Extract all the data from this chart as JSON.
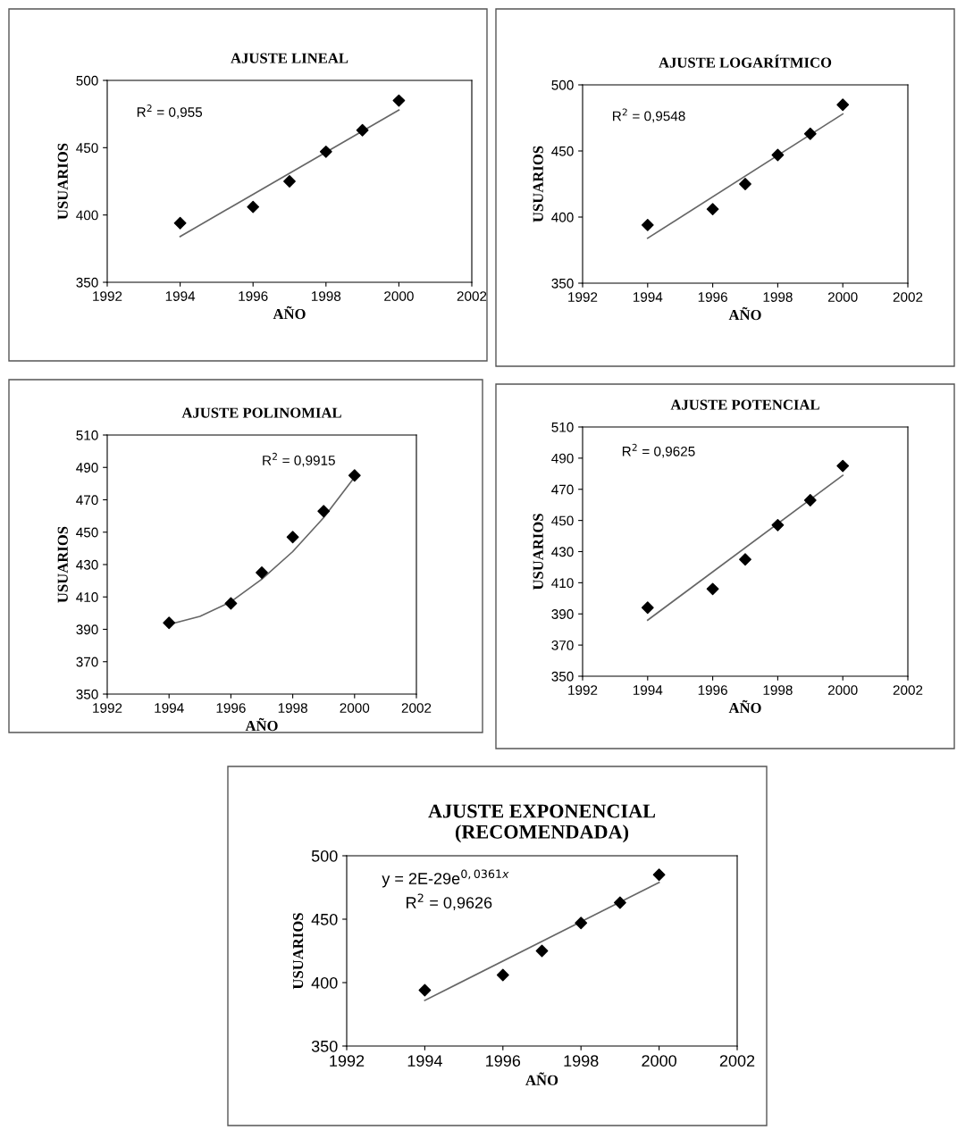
{
  "chart_data": [
    {
      "type": "scatter",
      "title": "AJUSTE LINEAL",
      "xlabel": "AÑO",
      "ylabel": "USUARIOS",
      "xlim": [
        1992,
        2002
      ],
      "xticks": [
        1992,
        1994,
        1996,
        1998,
        2000,
        2002
      ],
      "ylim": [
        350,
        500
      ],
      "yticks": [
        350,
        400,
        450,
        500
      ],
      "grid": false,
      "annotations": [
        "R$^{2}$ = 0,955"
      ],
      "series": [
        {
          "marker": "diamond",
          "color": "#000000",
          "x": [
            1994,
            1996,
            1997,
            1998,
            1999,
            2000
          ],
          "values": [
            394,
            406,
            425,
            447,
            463,
            485
          ]
        },
        {
          "type": "line",
          "line_style": "solid",
          "color": "#666666",
          "x": [
            1994,
            2000
          ],
          "values": [
            384,
            478
          ]
        }
      ]
    },
    {
      "type": "scatter",
      "title": "AJUSTE LOGARÍTMICO",
      "xlabel": "AÑO",
      "ylabel": "USUARIOS",
      "xlim": [
        1992,
        2002
      ],
      "xticks": [
        1992,
        1994,
        1996,
        1998,
        2000,
        2002
      ],
      "ylim": [
        350,
        500
      ],
      "yticks": [
        350,
        400,
        450,
        500
      ],
      "grid": false,
      "annotations": [
        "R$^{2}$ = 0,9548"
      ],
      "series": [
        {
          "marker": "diamond",
          "color": "#000000",
          "x": [
            1994,
            1996,
            1997,
            1998,
            1999,
            2000
          ],
          "values": [
            394,
            406,
            425,
            447,
            463,
            485
          ]
        },
        {
          "type": "line",
          "line_style": "solid",
          "color": "#666666",
          "x": [
            1994,
            2000
          ],
          "values": [
            384,
            478
          ]
        }
      ]
    },
    {
      "type": "scatter",
      "title": "AJUSTE POLINOMIAL",
      "xlabel": "AÑO",
      "ylabel": "USUARIOS",
      "xlim": [
        1992,
        2002
      ],
      "xticks": [
        1992,
        1994,
        1996,
        1998,
        2000,
        2002
      ],
      "ylim": [
        350,
        510
      ],
      "yticks": [
        350,
        370,
        390,
        410,
        430,
        450,
        470,
        490,
        510
      ],
      "grid": false,
      "annotations": [
        "R$^{2}$ = 0,9915"
      ],
      "series": [
        {
          "marker": "diamond",
          "color": "#000000",
          "x": [
            1994,
            1996,
            1997,
            1998,
            1999,
            2000
          ],
          "values": [
            394,
            406,
            425,
            447,
            463,
            485
          ]
        },
        {
          "type": "line",
          "line_style": "solid",
          "color": "#666666",
          "x": [
            1994,
            1995,
            1996,
            1997,
            1998,
            1999,
            2000
          ],
          "values": [
            393,
            398,
            407,
            421,
            438,
            459,
            484
          ]
        }
      ]
    },
    {
      "type": "scatter",
      "title": "AJUSTE POTENCIAL",
      "xlabel": "AÑO",
      "ylabel": "USUARIOS",
      "xlim": [
        1992,
        2002
      ],
      "xticks": [
        1992,
        1994,
        1996,
        1998,
        2000,
        2002
      ],
      "ylim": [
        350,
        510
      ],
      "yticks": [
        350,
        370,
        390,
        410,
        430,
        450,
        470,
        490,
        510
      ],
      "grid": false,
      "annotations": [
        "R$^{2}$ = 0,9625"
      ],
      "series": [
        {
          "marker": "diamond",
          "color": "#000000",
          "x": [
            1994,
            1996,
            1997,
            1998,
            1999,
            2000
          ],
          "values": [
            394,
            406,
            425,
            447,
            463,
            485
          ]
        },
        {
          "type": "line",
          "line_style": "solid",
          "color": "#666666",
          "x": [
            1994,
            2000
          ],
          "values": [
            386,
            479
          ]
        }
      ]
    },
    {
      "type": "scatter",
      "title": "AJUSTE EXPONENCIAL\n(RECOMENDADA)",
      "xlabel": "AÑO",
      "ylabel": "USUARIOS",
      "xlim": [
        1992,
        2002
      ],
      "xticks": [
        1992,
        1994,
        1996,
        1998,
        2000,
        2002
      ],
      "ylim": [
        350,
        500
      ],
      "yticks": [
        350,
        400,
        450,
        500
      ],
      "grid": false,
      "annotations": [
        "y = 2E-29e$^{0,0361x}$",
        "R$^{2}$ = 0,9626"
      ],
      "series": [
        {
          "marker": "diamond",
          "color": "#000000",
          "x": [
            1994,
            1996,
            1997,
            1998,
            1999,
            2000
          ],
          "values": [
            394,
            406,
            425,
            447,
            463,
            485
          ]
        },
        {
          "type": "line",
          "line_style": "solid",
          "color": "#666666",
          "x": [
            1994,
            2000
          ],
          "values": [
            386,
            479
          ]
        }
      ]
    }
  ]
}
